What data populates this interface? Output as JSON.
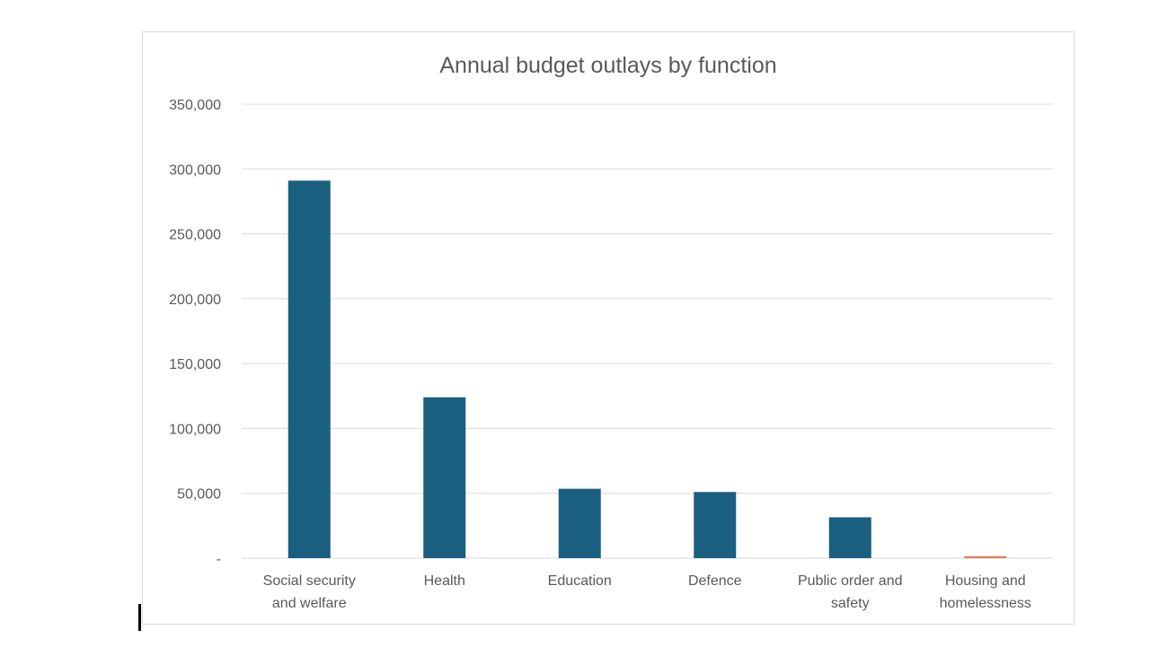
{
  "chart_data": {
    "type": "bar",
    "title": "Annual budget outlays by function",
    "xlabel": "",
    "ylabel": "",
    "categories": [
      [
        "Social security",
        "and welfare"
      ],
      [
        "Health"
      ],
      [
        "Education"
      ],
      [
        "Defence"
      ],
      [
        "Public order and",
        "safety"
      ],
      [
        "Housing and",
        "homelessness"
      ]
    ],
    "values": [
      291000,
      124000,
      53500,
      51000,
      31500,
      1500
    ],
    "bar_colors": [
      "#1b5f80",
      "#1b5f80",
      "#1b5f80",
      "#1b5f80",
      "#1b5f80",
      "#e07b54"
    ],
    "ylim": [
      0,
      350000
    ],
    "yticks": [
      0,
      50000,
      100000,
      150000,
      200000,
      250000,
      300000,
      350000
    ],
    "ytick_labels": [
      "-",
      "50,000",
      "100,000",
      "150,000",
      "200,000",
      "250,000",
      "300,000",
      "350,000"
    ],
    "grid": true,
    "legend": "none",
    "colors": {
      "axis_text": "#595959",
      "title_text": "#595959",
      "grid": "#d9d9d9"
    }
  }
}
